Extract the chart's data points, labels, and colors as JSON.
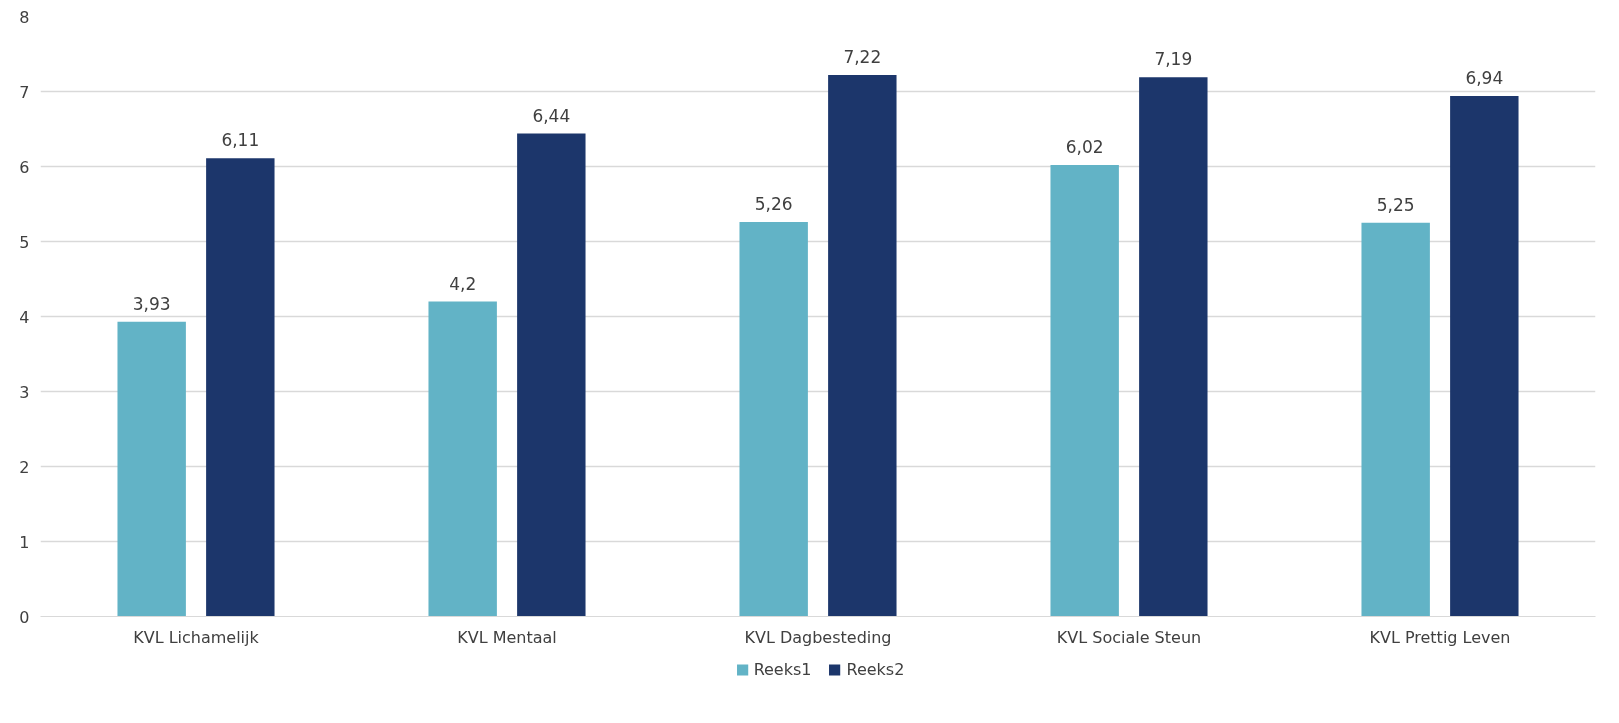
{
  "chart_data": {
    "type": "bar",
    "categories": [
      "KVL Lichamelijk",
      "KVL Mentaal",
      "KVL Dagbesteding",
      "KVL Sociale Steun",
      "KVL Prettig Leven"
    ],
    "series": [
      {
        "name": "Reeks1",
        "color": "#62b3c6",
        "values": [
          3.93,
          4.2,
          5.26,
          6.02,
          5.25
        ],
        "value_labels": [
          "3,93",
          "4,2",
          "5,26",
          "6,02",
          "5,25"
        ]
      },
      {
        "name": "Reeks2",
        "color": "#1c366b",
        "values": [
          6.11,
          6.44,
          7.22,
          7.19,
          6.94
        ],
        "value_labels": [
          "6,11",
          "6,44",
          "7,22",
          "7,19",
          "6,94"
        ]
      }
    ],
    "ylim": [
      0,
      8
    ],
    "yticks": [
      0,
      1,
      2,
      3,
      4,
      5,
      6,
      7,
      8
    ],
    "grid": "y",
    "legend": "bottom"
  }
}
